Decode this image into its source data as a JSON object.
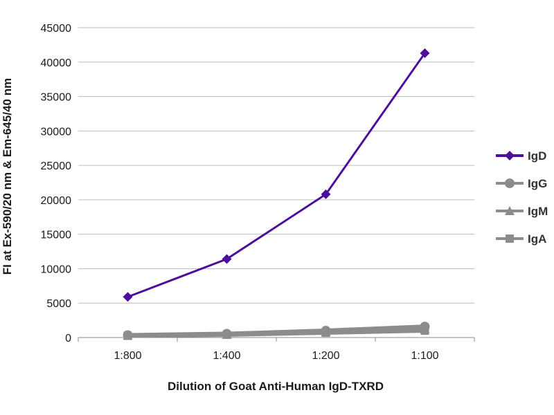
{
  "chart_data": {
    "type": "line",
    "title": "",
    "xlabel": "Dilution of Goat Anti-Human IgD-TXRD",
    "ylabel": "FI at Ex-590/20 nm & Em-645/40 nm",
    "categories": [
      "1:800",
      "1:400",
      "1:200",
      "1:100"
    ],
    "ylim": [
      0,
      45000
    ],
    "yticks": [
      0,
      5000,
      10000,
      15000,
      20000,
      25000,
      30000,
      35000,
      40000,
      45000
    ],
    "grid": true,
    "legend_position": "right",
    "series": [
      {
        "name": "IgD",
        "values": [
          5900,
          11400,
          20800,
          41300
        ],
        "color": "#4b0f9c",
        "marker": "diamond"
      },
      {
        "name": "IgG",
        "values": [
          350,
          550,
          1000,
          1600
        ],
        "color": "#8c8c8c",
        "marker": "circle"
      },
      {
        "name": "IgM",
        "values": [
          300,
          450,
          800,
          1200
        ],
        "color": "#8c8c8c",
        "marker": "triangle"
      },
      {
        "name": "IgA",
        "values": [
          250,
          400,
          700,
          1000
        ],
        "color": "#8c8c8c",
        "marker": "square"
      }
    ]
  }
}
